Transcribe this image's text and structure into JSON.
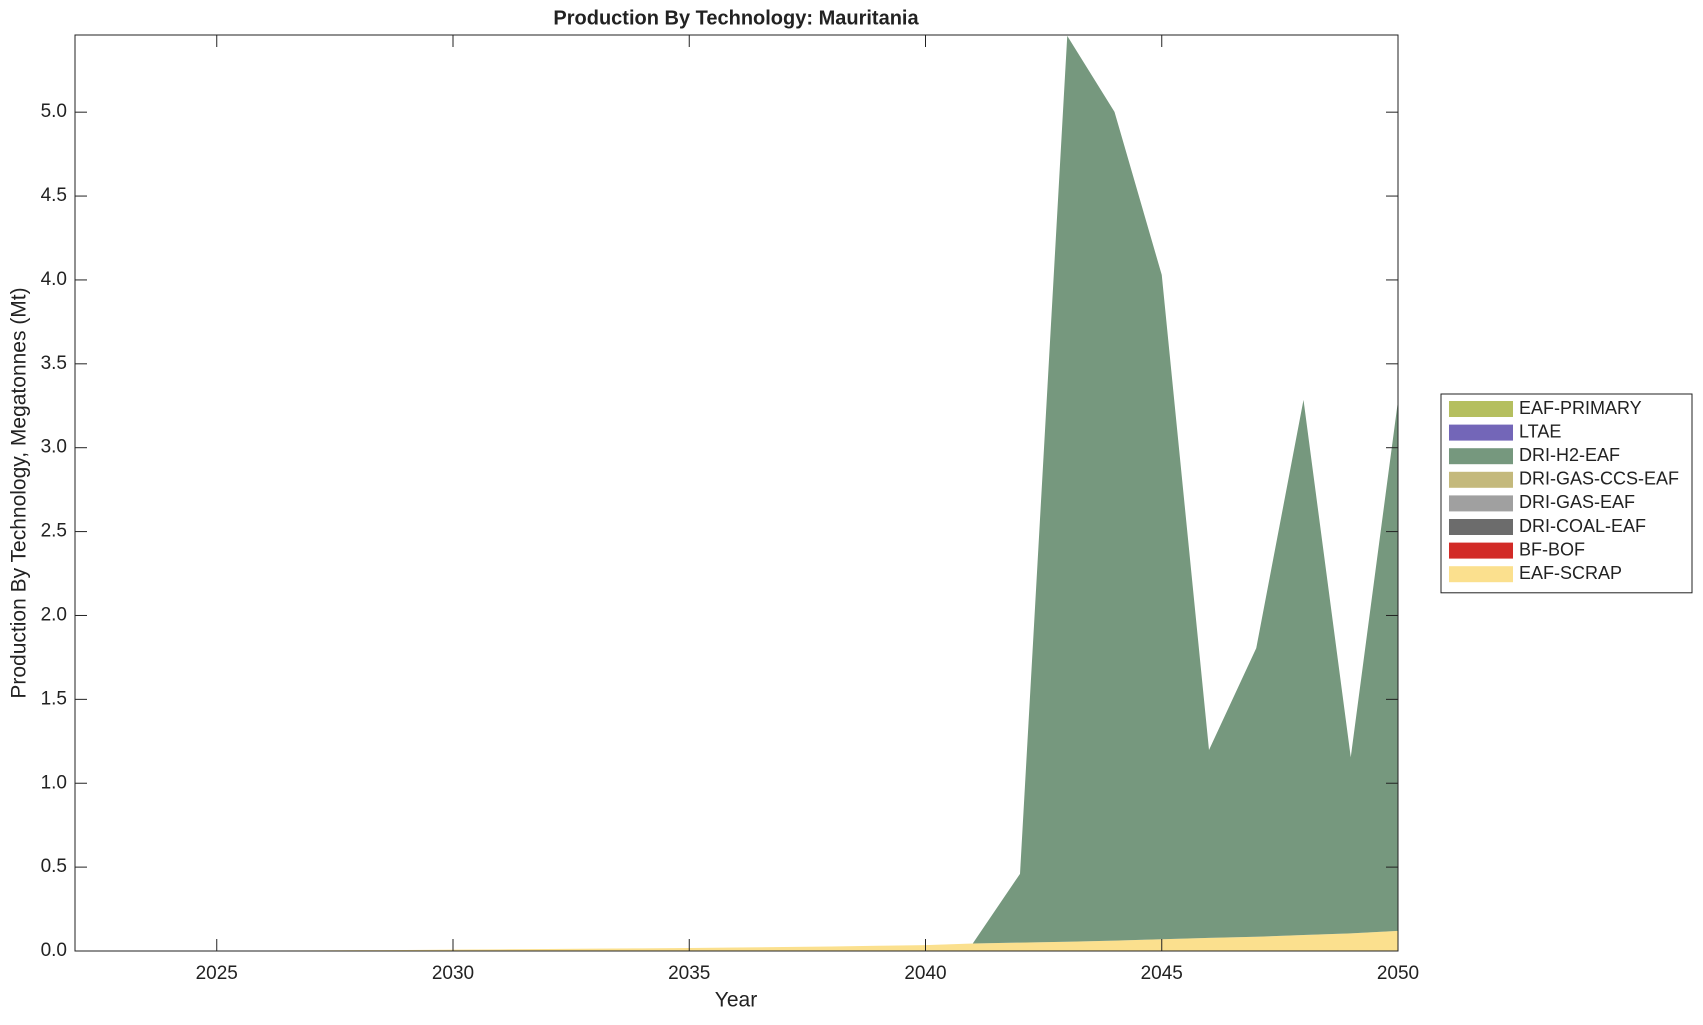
{
  "chart_data": {
    "type": "stacked-area",
    "title": "Production By Technology: Mauritania",
    "x_label": "Year",
    "y_label": "Production By Technology, Megatonnes (Mt)",
    "x": [
      2022,
      2023,
      2024,
      2025,
      2026,
      2027,
      2028,
      2029,
      2030,
      2031,
      2032,
      2033,
      2034,
      2035,
      2036,
      2037,
      2038,
      2039,
      2040,
      2041,
      2042,
      2043,
      2044,
      2045,
      2046,
      2047,
      2048,
      2049,
      2050
    ],
    "series": [
      {
        "name": "EAF-SCRAP",
        "color": "#fbe08e",
        "values": [
          0,
          0.001,
          0.001,
          0.002,
          0.003,
          0.004,
          0.005,
          0.006,
          0.008,
          0.01,
          0.012,
          0.014,
          0.016,
          0.018,
          0.021,
          0.024,
          0.027,
          0.031,
          0.035,
          0.045,
          0.05,
          0.055,
          0.062,
          0.07,
          0.078,
          0.085,
          0.095,
          0.105,
          0.12
        ]
      },
      {
        "name": "BF-BOF",
        "color": "#d22b27",
        "values": [
          0,
          0,
          0,
          0,
          0,
          0,
          0,
          0,
          0,
          0,
          0,
          0,
          0,
          0,
          0,
          0,
          0,
          0,
          0,
          0,
          0,
          0,
          0,
          0,
          0,
          0,
          0,
          0,
          0
        ]
      },
      {
        "name": "DRI-COAL-EAF",
        "color": "#6c6c6c",
        "values": [
          0,
          0,
          0,
          0,
          0,
          0,
          0,
          0,
          0,
          0,
          0,
          0,
          0,
          0,
          0,
          0,
          0,
          0,
          0,
          0,
          0,
          0,
          0,
          0,
          0,
          0,
          0,
          0,
          0
        ]
      },
      {
        "name": "DRI-GAS-EAF",
        "color": "#a0a0a0",
        "values": [
          0,
          0,
          0,
          0,
          0,
          0,
          0,
          0,
          0,
          0,
          0,
          0,
          0,
          0,
          0,
          0,
          0,
          0,
          0,
          0,
          0,
          0,
          0,
          0,
          0,
          0,
          0,
          0,
          0
        ]
      },
      {
        "name": "DRI-GAS-CCS-EAF",
        "color": "#c4b97c",
        "values": [
          0,
          0,
          0,
          0,
          0,
          0,
          0,
          0,
          0,
          0,
          0,
          0,
          0,
          0,
          0,
          0,
          0,
          0,
          0,
          0,
          0,
          0,
          0,
          0,
          0,
          0,
          0,
          0,
          0
        ]
      },
      {
        "name": "DRI-H2-EAF",
        "color": "#76987e",
        "values": [
          0,
          0,
          0,
          0,
          0,
          0,
          0,
          0,
          0,
          0,
          0,
          0,
          0,
          0,
          0,
          0,
          0,
          0,
          0,
          0,
          0.41,
          5.4,
          4.94,
          3.96,
          1.12,
          1.72,
          3.19,
          1.05,
          3.16
        ]
      },
      {
        "name": "LTAE",
        "color": "#7366b8",
        "values": [
          0,
          0,
          0,
          0,
          0,
          0,
          0,
          0,
          0,
          0,
          0,
          0,
          0,
          0,
          0,
          0,
          0,
          0,
          0,
          0,
          0,
          0,
          0,
          0,
          0,
          0,
          0,
          0,
          0
        ]
      },
      {
        "name": "EAF-PRIMARY",
        "color": "#b5bf5f",
        "values": [
          0,
          0,
          0,
          0,
          0,
          0,
          0,
          0,
          0,
          0,
          0,
          0,
          0,
          0,
          0,
          0,
          0,
          0,
          0,
          0,
          0,
          0,
          0,
          0,
          0,
          0,
          0,
          0,
          0
        ]
      }
    ],
    "xlim": [
      2022,
      2050
    ],
    "xticks": [
      2025,
      2030,
      2035,
      2040,
      2045,
      2050
    ],
    "ylim": [
      0,
      5.46
    ],
    "yticks": [
      {
        "value": 0,
        "label": "0.0"
      },
      0.5,
      {
        "value": 1,
        "label": "1.0"
      },
      1.5,
      {
        "value": 2,
        "label": "2.0"
      },
      2.5,
      {
        "value": 3,
        "label": "3.0"
      },
      3.5,
      {
        "value": 4,
        "label": "4.0"
      },
      4.5,
      {
        "value": 5,
        "label": "5.0"
      }
    ],
    "grid": false,
    "legend": "right"
  }
}
